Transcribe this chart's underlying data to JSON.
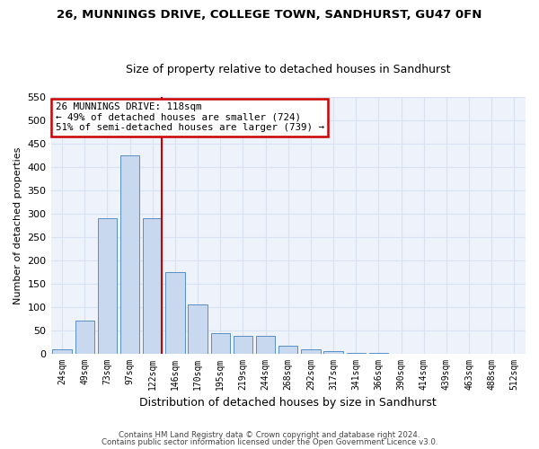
{
  "title1": "26, MUNNINGS DRIVE, COLLEGE TOWN, SANDHURST, GU47 0FN",
  "title2": "Size of property relative to detached houses in Sandhurst",
  "xlabel": "Distribution of detached houses by size in Sandhurst",
  "ylabel": "Number of detached properties",
  "bar_labels": [
    "24sqm",
    "49sqm",
    "73sqm",
    "97sqm",
    "122sqm",
    "146sqm",
    "170sqm",
    "195sqm",
    "219sqm",
    "244sqm",
    "268sqm",
    "292sqm",
    "317sqm",
    "341sqm",
    "366sqm",
    "390sqm",
    "414sqm",
    "439sqm",
    "463sqm",
    "488sqm",
    "512sqm"
  ],
  "bar_values": [
    8,
    70,
    290,
    425,
    290,
    175,
    105,
    43,
    38,
    37,
    16,
    8,
    4,
    2,
    1,
    0,
    0,
    0,
    0,
    0,
    0
  ],
  "bar_color": "#c8d8ee",
  "bar_edgecolor": "#5a8fc2",
  "vline_x": 4.42,
  "vline_color": "#cc0000",
  "annotation_text": "26 MUNNINGS DRIVE: 118sqm\n← 49% of detached houses are smaller (724)\n51% of semi-detached houses are larger (739) →",
  "annotation_box_color": "#ffffff",
  "annotation_box_edgecolor": "#cc0000",
  "ylim": [
    0,
    550
  ],
  "yticks": [
    0,
    50,
    100,
    150,
    200,
    250,
    300,
    350,
    400,
    450,
    500,
    550
  ],
  "bg_color": "#edf2fb",
  "grid_color": "#d8e2f0",
  "footer1": "Contains HM Land Registry data © Crown copyright and database right 2024.",
  "footer2": "Contains public sector information licensed under the Open Government Licence v3.0."
}
